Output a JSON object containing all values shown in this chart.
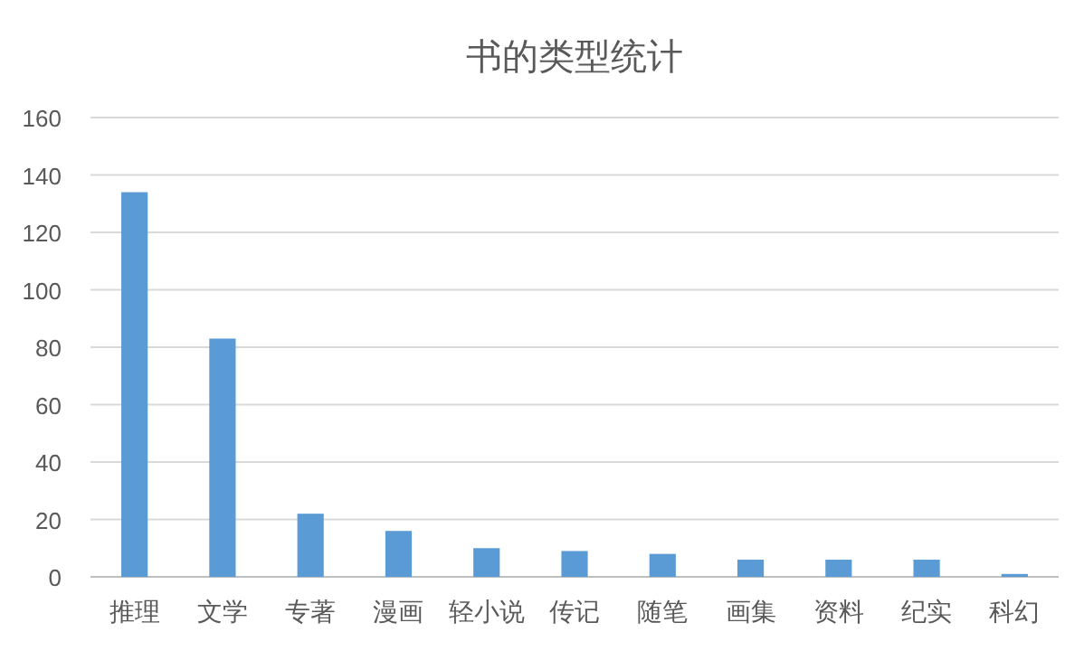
{
  "chart_data": {
    "type": "bar",
    "title": "书的类型统计",
    "categories": [
      "推理",
      "文学",
      "专著",
      "漫画",
      "轻小说",
      "传记",
      "随笔",
      "画集",
      "资料",
      "纪实",
      "科幻"
    ],
    "values": [
      134,
      83,
      22,
      16,
      10,
      9,
      8,
      6,
      6,
      6,
      1
    ],
    "color": "#5b9bd5",
    "ylim": [
      0,
      160
    ],
    "yticks": [
      0,
      20,
      40,
      60,
      80,
      100,
      120,
      140,
      160
    ],
    "grid": "y"
  }
}
